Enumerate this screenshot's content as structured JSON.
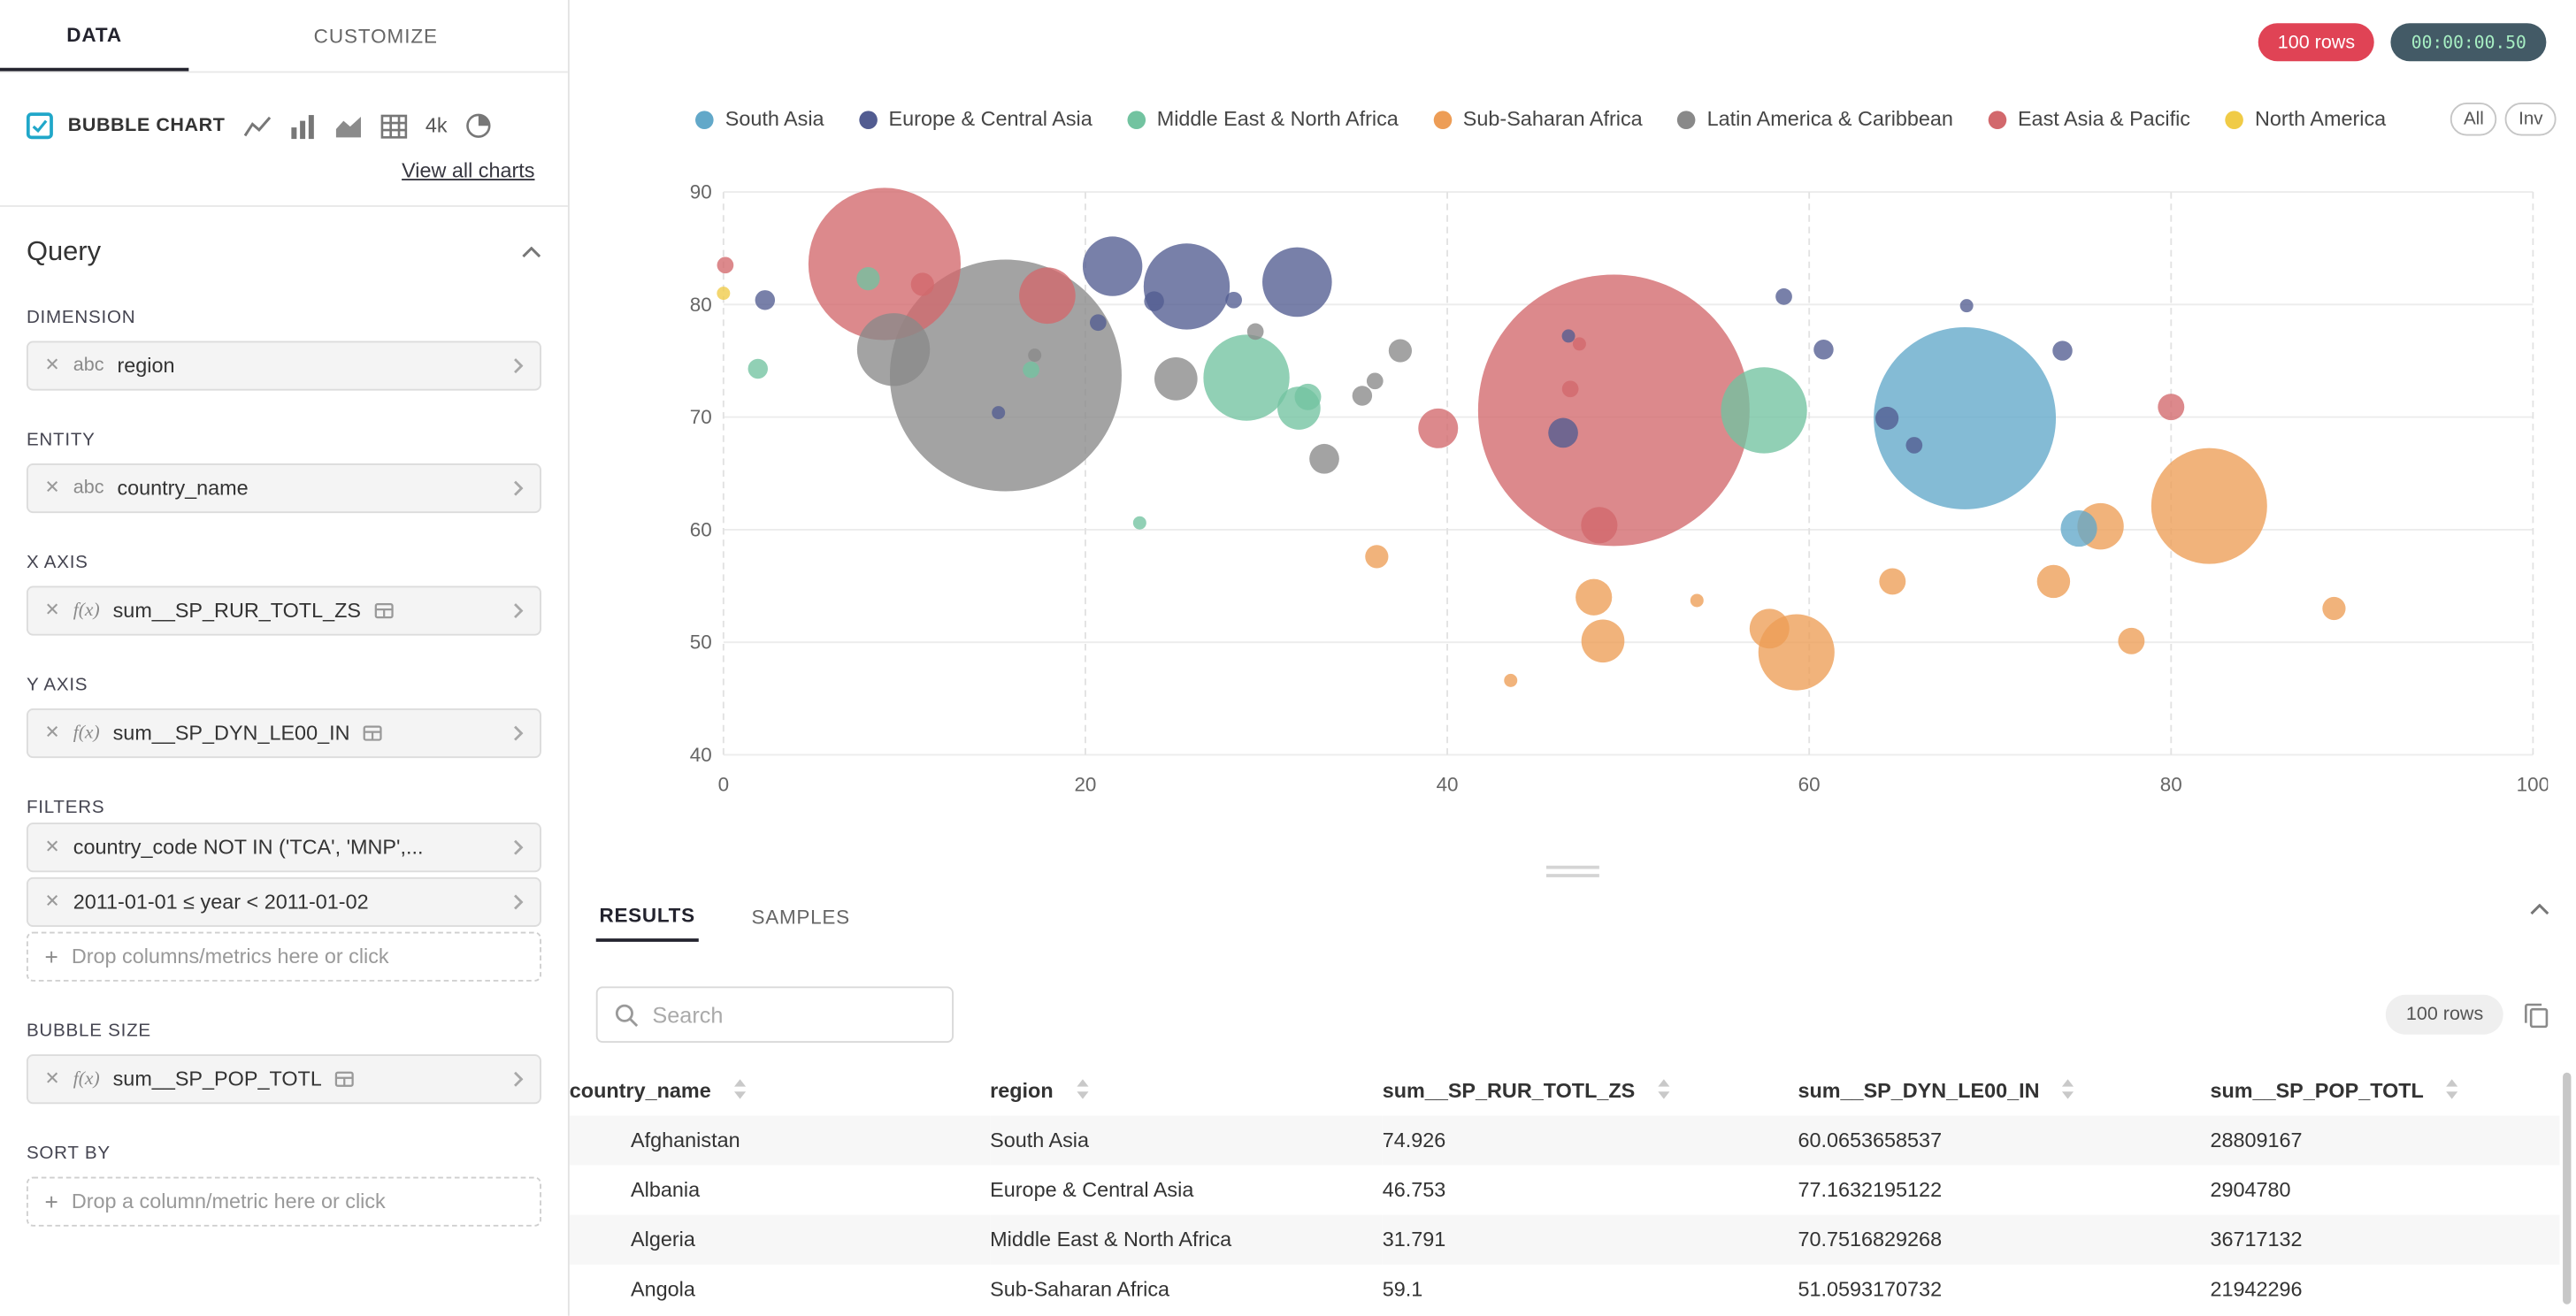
{
  "sidebar": {
    "tabs": [
      "DATA",
      "CUSTOMIZE"
    ],
    "viz": {
      "label": "BUBBLE CHART",
      "alt_4k": "4k"
    },
    "view_all_link": "View all charts",
    "query_title": "Query",
    "dimension": {
      "label": "DIMENSION",
      "type": "abc",
      "value": "region"
    },
    "entity": {
      "label": "ENTITY",
      "type": "abc",
      "value": "country_name"
    },
    "x_axis": {
      "label": "X AXIS",
      "type": "f(x)",
      "value": "sum__SP_RUR_TOTL_ZS"
    },
    "y_axis": {
      "label": "Y AXIS",
      "type": "f(x)",
      "value": "sum__SP_DYN_LE00_IN"
    },
    "filters": {
      "label": "FILTERS",
      "items": [
        "country_code NOT IN ('TCA', 'MNP',...",
        "2011-01-01 ≤ year < 2011-01-02"
      ],
      "drop_hint": "Drop columns/metrics here or click"
    },
    "bubble_size": {
      "label": "BUBBLE SIZE",
      "type": "f(x)",
      "value": "sum__SP_POP_TOTL"
    },
    "sort_by": {
      "label": "SORT BY",
      "drop_hint": "Drop a column/metric here or click"
    }
  },
  "header": {
    "rows_badge": "100 rows",
    "timer": "00:00:00.50"
  },
  "legend_buttons": [
    "All",
    "Inv"
  ],
  "results": {
    "tabs": [
      "RESULTS",
      "SAMPLES"
    ],
    "search_placeholder": "Search",
    "rows_badge": "100 rows",
    "columns": [
      "country_name",
      "region",
      "sum__SP_RUR_TOTL_ZS",
      "sum__SP_DYN_LE00_IN",
      "sum__SP_POP_TOTL"
    ],
    "rows": [
      [
        "Afghanistan",
        "South Asia",
        "74.926",
        "60.0653658537",
        "28809167"
      ],
      [
        "Albania",
        "Europe & Central Asia",
        "46.753",
        "77.1632195122",
        "2904780"
      ],
      [
        "Algeria",
        "Middle East & North Africa",
        "31.791",
        "70.7516829268",
        "36717132"
      ],
      [
        "Angola",
        "Sub-Saharan Africa",
        "59.1",
        "51.0593170732",
        "21942296"
      ]
    ]
  },
  "colors": {
    "accent": "#20a7c9",
    "rows_badge_bg": "#e04355",
    "rows_badge_text": "#ffffff",
    "timer_bg": "#435a66",
    "timer_text": "#a7efc3"
  },
  "icons": {
    "search-icon": "magnifier",
    "copy-icon": "overlapping squares",
    "remove-icon": "✕",
    "chevron-right-icon": "›",
    "chevron-up-icon": "^",
    "plus-icon": "+",
    "sort-icon": "▲▼",
    "line-chart-icon": "polyline",
    "bar-chart-icon": "bars",
    "area-chart-icon": "filled area",
    "table-icon": "grid",
    "pie-chart-icon": "pie wedge",
    "metric-table-icon": "mini grid",
    "drag-handle-icon": "double line"
  },
  "chart_data": {
    "type": "scatter",
    "title": "",
    "xlabel": "",
    "ylabel": "",
    "xlim": [
      0,
      100
    ],
    "ylim": [
      40,
      90
    ],
    "x_ticks": [
      0,
      20,
      40,
      60,
      80,
      100
    ],
    "y_ticks": [
      40,
      50,
      60,
      70,
      80,
      90
    ],
    "grid": "horizontal solid, vertical dashed",
    "legend_position": "top",
    "bubble_size_note": "radius encodes sum__SP_POP_TOTL",
    "regions": [
      {
        "name": "South Asia",
        "color": "#62a8c9"
      },
      {
        "name": "Europe & Central Asia",
        "color": "#525c91"
      },
      {
        "name": "Middle East & North Africa",
        "color": "#72c3a0"
      },
      {
        "name": "Sub-Saharan Africa",
        "color": "#ed9d56"
      },
      {
        "name": "Latin America & Caribbean",
        "color": "#898989"
      },
      {
        "name": "East Asia & Pacific",
        "color": "#d2686c"
      },
      {
        "name": "North America",
        "color": "#f0cb46"
      }
    ],
    "point_format": [
      "x (sum__SP_RUR_TOTL_ZS)",
      "y (sum__SP_DYN_LE00_IN)",
      "radius_px",
      "region_index"
    ],
    "points": [
      [
        0.1,
        83.5,
        5,
        5
      ],
      [
        8.9,
        83.6,
        46,
        5
      ],
      [
        11.0,
        81.8,
        7,
        5
      ],
      [
        17.9,
        80.8,
        17,
        5
      ],
      [
        39.5,
        69.0,
        12,
        5
      ],
      [
        49.2,
        70.6,
        82,
        5
      ],
      [
        48.4,
        60.4,
        11,
        5
      ],
      [
        80.0,
        70.9,
        8,
        5
      ],
      [
        46.8,
        72.5,
        5,
        5
      ],
      [
        47.3,
        76.5,
        4,
        5
      ],
      [
        0.0,
        81.0,
        4,
        6
      ],
      [
        2.3,
        80.4,
        6,
        1
      ],
      [
        21.5,
        83.4,
        18,
        1
      ],
      [
        25.6,
        81.6,
        26,
        1
      ],
      [
        31.7,
        82.0,
        21,
        1
      ],
      [
        23.8,
        80.3,
        6,
        1
      ],
      [
        28.2,
        80.4,
        5,
        1
      ],
      [
        20.7,
        78.4,
        5,
        1
      ],
      [
        15.2,
        70.4,
        4,
        1
      ],
      [
        46.4,
        68.6,
        9,
        1
      ],
      [
        58.6,
        80.7,
        5,
        1
      ],
      [
        60.8,
        76.0,
        6,
        1
      ],
      [
        64.3,
        69.9,
        7,
        1
      ],
      [
        65.8,
        67.5,
        5,
        1
      ],
      [
        68.7,
        79.9,
        4,
        1
      ],
      [
        74.0,
        75.9,
        6,
        1
      ],
      [
        46.7,
        77.2,
        4,
        1
      ],
      [
        1.9,
        74.3,
        6,
        2
      ],
      [
        8.0,
        82.3,
        7,
        2
      ],
      [
        28.9,
        73.5,
        26,
        2
      ],
      [
        31.8,
        70.8,
        13,
        2
      ],
      [
        32.3,
        71.8,
        8,
        2
      ],
      [
        23.0,
        60.6,
        4,
        2
      ],
      [
        57.5,
        70.6,
        26,
        2
      ],
      [
        17.0,
        74.2,
        5,
        2
      ],
      [
        36.1,
        57.6,
        7,
        3
      ],
      [
        43.5,
        46.6,
        4,
        3
      ],
      [
        48.1,
        54.0,
        11,
        3
      ],
      [
        48.6,
        50.1,
        13,
        3
      ],
      [
        59.3,
        49.1,
        23,
        3
      ],
      [
        57.8,
        51.2,
        12,
        3
      ],
      [
        53.8,
        53.7,
        4,
        3
      ],
      [
        64.6,
        55.4,
        8,
        3
      ],
      [
        73.5,
        55.4,
        10,
        3
      ],
      [
        76.1,
        60.3,
        14,
        3
      ],
      [
        82.1,
        62.1,
        35,
        3
      ],
      [
        77.8,
        50.1,
        8,
        3
      ],
      [
        89.0,
        53.0,
        7,
        3
      ],
      [
        68.6,
        69.9,
        55,
        0
      ],
      [
        74.9,
        60.1,
        11,
        0
      ],
      [
        15.6,
        73.7,
        70,
        4
      ],
      [
        9.4,
        76.0,
        22,
        4
      ],
      [
        25.0,
        73.4,
        13,
        4
      ],
      [
        33.2,
        66.3,
        9,
        4
      ],
      [
        35.3,
        71.9,
        6,
        4
      ],
      [
        37.4,
        75.9,
        7,
        4
      ],
      [
        36.0,
        73.2,
        5,
        4
      ],
      [
        29.4,
        77.6,
        5,
        4
      ],
      [
        17.2,
        75.5,
        4,
        4
      ]
    ]
  }
}
